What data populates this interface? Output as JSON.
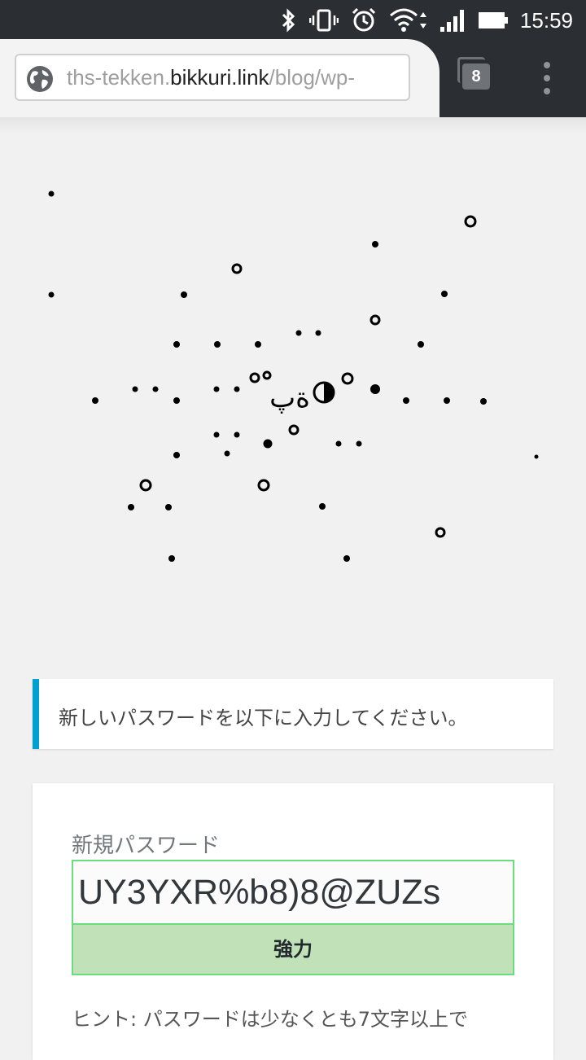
{
  "status_bar": {
    "time": "15:59",
    "icons": [
      "bluetooth-icon",
      "vibrate-icon",
      "alarm-icon",
      "wifi-icon",
      "signal-icon",
      "battery-icon"
    ]
  },
  "browser": {
    "url_prefix": "ths-tekken.",
    "url_host": "bikkuri.link",
    "url_path": "/blog/wp-",
    "tab_count": "8"
  },
  "logo": {
    "text": "ة‌پ"
  },
  "notice": {
    "message": "新しいパスワードを以下に入力してください。"
  },
  "form": {
    "new_password_label": "新規パスワード",
    "password_value": "UY3YXR%b8)8@ZUZs",
    "strength_label": "強力",
    "hint": "ヒント: パスワードは少なくとも7文字以上で"
  },
  "colors": {
    "notice_accent": "#00a0d2",
    "strength_bg": "#c1e1b9",
    "strength_border": "#68de7c"
  }
}
